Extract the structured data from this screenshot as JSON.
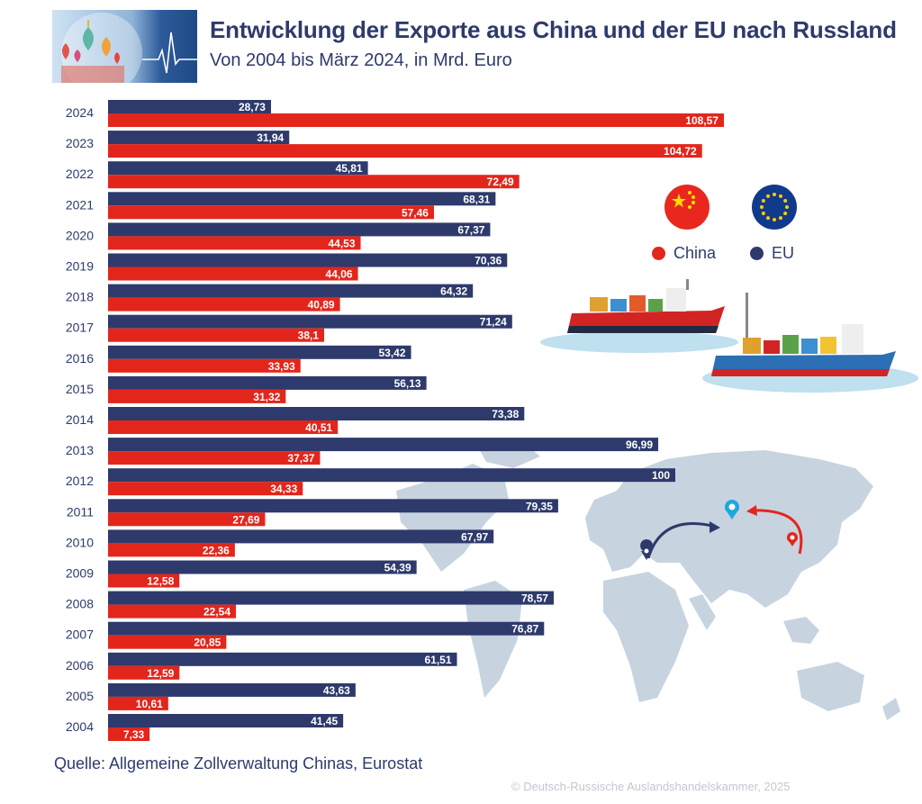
{
  "title": "Entwicklung der Exporte aus China und der EU nach Russland",
  "subtitle": "Von 2004 bis März 2024, in Mrd. Euro",
  "source": "Quelle: Allgemeine Zollverwaltung Chinas, Eurostat",
  "copyright": "© Deutsch-Russische Auslandshandelskammer, 2025",
  "legend": {
    "china": "China",
    "eu": "EU"
  },
  "colors": {
    "china": "#e3261c",
    "eu": "#2e3a6b",
    "axis_text": "#2e3a6b",
    "map": "#c7d4e0"
  },
  "chart_data": {
    "type": "bar",
    "orientation": "horizontal",
    "title": "Entwicklung der Exporte aus China und der EU nach Russland",
    "subtitle": "Von 2004 bis März 2024, in Mrd. Euro",
    "categories": [
      "2024",
      "2023",
      "2022",
      "2021",
      "2020",
      "2019",
      "2018",
      "2017",
      "2016",
      "2015",
      "2014",
      "2013",
      "2012",
      "2011",
      "2010",
      "2009",
      "2008",
      "2007",
      "2006",
      "2005",
      "2004"
    ],
    "series": [
      {
        "name": "EU",
        "color": "#2e3a6b",
        "values": [
          28.73,
          31.94,
          45.81,
          68.31,
          67.37,
          70.36,
          64.32,
          71.24,
          53.42,
          56.13,
          73.38,
          96.99,
          100,
          79.35,
          67.97,
          54.39,
          78.57,
          76.87,
          61.51,
          43.63,
          41.45
        ],
        "labels": [
          "28,73",
          "31,94",
          "45,81",
          "68,31",
          "67,37",
          "70,36",
          "64,32",
          "71,24",
          "53,42",
          "56,13",
          "73,38",
          "96,99",
          "100",
          "79,35",
          "67,97",
          "54,39",
          "78,57",
          "76,87",
          "61,51",
          "43,63",
          "41,45"
        ]
      },
      {
        "name": "China",
        "color": "#e3261c",
        "values": [
          108.57,
          104.72,
          72.49,
          57.46,
          44.53,
          44.06,
          40.89,
          38.1,
          33.93,
          31.32,
          40.51,
          37.37,
          34.33,
          27.69,
          22.36,
          12.58,
          22.54,
          20.85,
          12.59,
          10.61,
          7.33
        ],
        "labels": [
          "108,57",
          "104,72",
          "72,49",
          "57,46",
          "44,53",
          "44,06",
          "40,89",
          "38,1",
          "33,93",
          "31,32",
          "40,51",
          "37,37",
          "34,33",
          "27,69",
          "22,36",
          "12,58",
          "22,54",
          "20,85",
          "12,59",
          "10,61",
          "7,33"
        ]
      }
    ],
    "xlim": [
      0,
      110
    ],
    "xlabel": "",
    "ylabel": "",
    "grid": false,
    "legend_position": "right"
  }
}
